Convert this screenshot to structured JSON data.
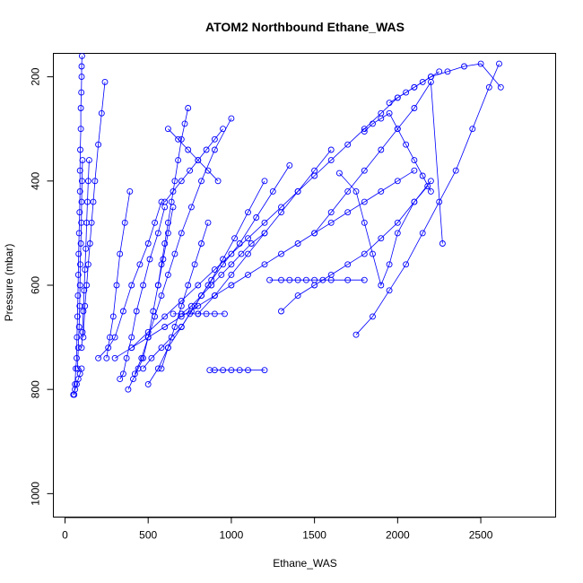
{
  "chart_data": {
    "type": "scatter",
    "title": "ATOM2 Northbound Ethane_WAS",
    "xlabel": "Ethane_WAS",
    "ylabel": "Pressure (mbar)",
    "xlim": [
      -70,
      2950
    ],
    "ylim": [
      1045,
      155
    ],
    "y_reversed": true,
    "x_ticks": [
      0,
      500,
      1000,
      1500,
      2000,
      2500
    ],
    "x_tick_labels": [
      "0",
      "500",
      "1000",
      "1500",
      "2000",
      "2500"
    ],
    "y_ticks": [
      200,
      400,
      600,
      800,
      1000
    ],
    "y_tick_labels": [
      "200",
      "400",
      "600",
      "800",
      "1000"
    ],
    "grid": false,
    "color": "#0000ff",
    "marker": "open-circle",
    "series": [
      {
        "x": [
          55,
          60,
          65,
          70,
          72,
          75,
          78,
          80,
          82,
          85,
          88,
          90,
          90,
          92,
          95,
          95,
          98,
          100,
          100,
          102
        ],
        "y": [
          810,
          790,
          760,
          740,
          700,
          660,
          620,
          580,
          540,
          500,
          460,
          420,
          380,
          340,
          300,
          260,
          230,
          200,
          180,
          160
        ]
      },
      {
        "x": [
          75,
          80,
          85,
          88,
          90,
          92,
          95,
          98,
          100,
          102,
          105
        ],
        "y": [
          760,
          720,
          680,
          640,
          600,
          560,
          520,
          480,
          440,
          400,
          360
        ]
      },
      {
        "x": [
          100,
          105,
          110,
          115,
          120,
          125,
          130,
          135,
          140,
          145
        ],
        "y": [
          720,
          690,
          650,
          610,
          570,
          530,
          480,
          440,
          400,
          360
        ]
      },
      {
        "x": [
          110,
          120,
          130,
          140,
          150,
          160,
          170,
          180,
          200,
          220,
          240
        ],
        "y": [
          700,
          640,
          600,
          560,
          520,
          480,
          440,
          400,
          330,
          270,
          210
        ]
      },
      {
        "x": [
          200,
          260,
          300,
          350,
          400,
          450,
          500,
          540,
          580
        ],
        "y": [
          740,
          720,
          700,
          650,
          600,
          560,
          520,
          480,
          440
        ]
      },
      {
        "x": [
          250,
          270,
          290,
          310,
          330,
          360,
          390
        ],
        "y": [
          740,
          700,
          660,
          600,
          540,
          480,
          420
        ]
      },
      {
        "x": [
          330,
          350,
          370,
          400,
          430,
          470,
          510,
          560,
          600
        ],
        "y": [
          780,
          770,
          740,
          700,
          650,
          600,
          550,
          500,
          450
        ]
      },
      {
        "x": [
          380,
          410,
          440,
          470,
          500,
          530,
          560,
          590,
          620,
          650
        ],
        "y": [
          800,
          780,
          760,
          740,
          700,
          650,
          600,
          550,
          500,
          450
        ]
      },
      {
        "x": [
          420,
          460,
          500,
          540,
          580,
          620,
          660,
          700,
          760,
          820,
          900,
          1000
        ],
        "y": [
          770,
          740,
          700,
          660,
          620,
          580,
          540,
          500,
          450,
          400,
          340,
          280
        ]
      },
      {
        "x": [
          470,
          520,
          580,
          640,
          700,
          760,
          820,
          880,
          950,
          1020,
          1100,
          1200
        ],
        "y": [
          760,
          740,
          720,
          700,
          680,
          650,
          620,
          590,
          550,
          510,
          460,
          400
        ]
      },
      {
        "x": [
          500,
          560,
          620,
          700,
          780,
          860,
          950,
          1050,
          1150,
          1250,
          1350
        ],
        "y": [
          790,
          760,
          720,
          680,
          640,
          600,
          560,
          520,
          470,
          420,
          370
        ]
      },
      {
        "x": [
          580,
          620,
          660,
          700,
          740,
          780,
          820,
          860
        ],
        "y": [
          760,
          720,
          680,
          640,
          600,
          560,
          520,
          480
        ]
      },
      {
        "x": [
          560,
          580,
          600,
          620,
          640,
          660,
          680,
          700,
          720,
          740
        ],
        "y": [
          600,
          560,
          520,
          480,
          440,
          400,
          360,
          320,
          290,
          260
        ]
      },
      {
        "x": [
          600,
          650,
          700,
          750,
          800,
          850,
          900,
          950
        ],
        "y": [
          440,
          420,
          400,
          380,
          360,
          340,
          320,
          300
        ]
      },
      {
        "x": [
          620,
          680,
          740,
          800,
          860,
          920
        ],
        "y": [
          300,
          320,
          340,
          360,
          380,
          400
        ]
      },
      {
        "x": [
          650,
          700,
          750,
          800,
          850,
          900,
          960
        ],
        "y": [
          655,
          655,
          655,
          655,
          655,
          655,
          655
        ]
      },
      {
        "x": [
          700,
          760,
          820,
          880,
          940,
          1000,
          1060,
          1120,
          1200
        ],
        "y": [
          655,
          640,
          620,
          600,
          580,
          560,
          540,
          520,
          500
        ]
      },
      {
        "x": [
          800,
          900,
          1000,
          1100,
          1200,
          1300,
          1400,
          1500,
          1600
        ],
        "y": [
          655,
          620,
          580,
          540,
          500,
          460,
          420,
          380,
          340
        ]
      },
      {
        "x": [
          1230,
          1300,
          1350,
          1400,
          1450,
          1500,
          1550,
          1600,
          1700,
          1800
        ],
        "y": [
          590,
          590,
          590,
          590,
          590,
          590,
          590,
          590,
          590,
          590
        ]
      },
      {
        "x": [
          1300,
          1400,
          1500,
          1600,
          1700,
          1800,
          1900,
          2000,
          2100,
          2200
        ],
        "y": [
          650,
          620,
          600,
          580,
          560,
          540,
          510,
          480,
          440,
          400
        ]
      },
      {
        "x": [
          1500,
          1600,
          1700,
          1800,
          1900,
          2000,
          2100,
          2200,
          2270
        ],
        "y": [
          500,
          460,
          420,
          380,
          340,
          300,
          260,
          210,
          520
        ]
      },
      {
        "x": [
          1750,
          1850,
          1950,
          2050,
          2150,
          2250,
          2350,
          2450,
          2550,
          2610
        ],
        "y": [
          695,
          660,
          610,
          560,
          500,
          440,
          380,
          300,
          220,
          175
        ]
      },
      {
        "x": [
          1650,
          1750,
          1800,
          1850,
          1900,
          1950,
          2000,
          2100,
          2180
        ],
        "y": [
          385,
          420,
          480,
          540,
          600,
          560,
          500,
          440,
          410
        ]
      },
      {
        "x": [
          1800,
          1850,
          1900,
          1950,
          2000,
          2050,
          2100,
          2150,
          2200
        ],
        "y": [
          305,
          290,
          280,
          270,
          300,
          330,
          360,
          390,
          420
        ]
      },
      {
        "x": [
          1950,
          2000,
          2050,
          2100,
          2150,
          2200,
          2250
        ],
        "y": [
          250,
          240,
          230,
          220,
          210,
          200,
          190
        ]
      },
      {
        "x": [
          870,
          900,
          950,
          1000,
          1050,
          1100,
          1200
        ],
        "y": [
          763,
          763,
          763,
          763,
          763,
          763,
          763
        ]
      },
      {
        "x": [
          50,
          60,
          70,
          80,
          90,
          100
        ],
        "y": [
          810,
          800,
          790,
          780,
          770,
          760
        ]
      },
      {
        "x": [
          300,
          400,
          500,
          600,
          700,
          800,
          900,
          1000,
          1100,
          1200,
          1300,
          1400,
          1500,
          1600,
          1700,
          1800,
          1900,
          2000,
          2100
        ],
        "y": [
          740,
          720,
          700,
          680,
          660,
          640,
          620,
          600,
          580,
          560,
          540,
          520,
          500,
          480,
          460,
          440,
          420,
          400,
          380
        ]
      },
      {
        "x": [
          400,
          500,
          600,
          700,
          800,
          900,
          1000,
          1100,
          1200,
          1300,
          1400,
          1500,
          1600,
          1700,
          1800,
          1900,
          2000,
          2100,
          2200,
          2300,
          2400,
          2500,
          2620
        ],
        "y": [
          720,
          690,
          660,
          630,
          600,
          570,
          540,
          510,
          480,
          450,
          420,
          390,
          360,
          330,
          300,
          270,
          240,
          220,
          200,
          190,
          180,
          175,
          220
        ]
      }
    ]
  }
}
